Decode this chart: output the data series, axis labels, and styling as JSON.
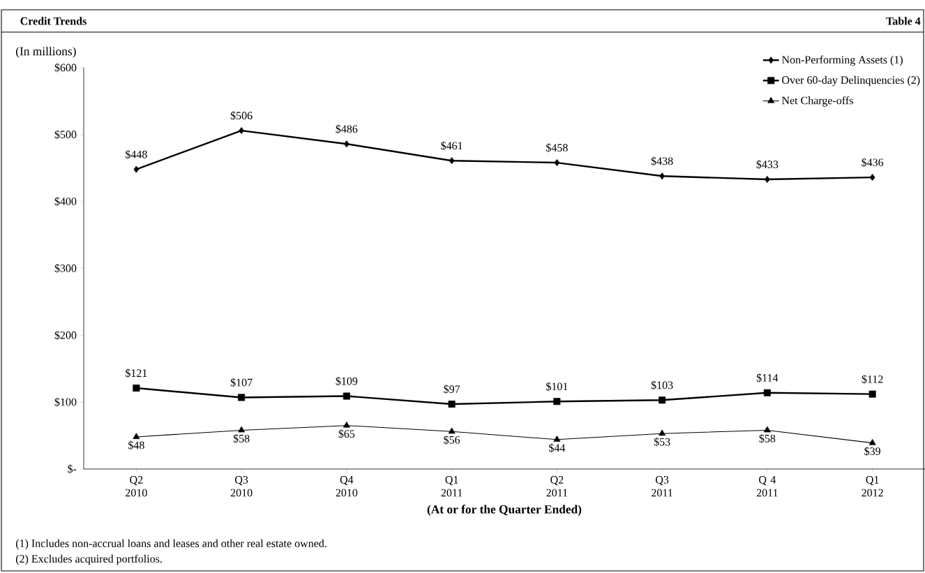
{
  "chart_data": {
    "type": "line",
    "title": "Credit Trends",
    "ylabel": "(In millions)",
    "xlabel": "(At or for the Quarter Ended)",
    "categories": [
      "Q2 2010",
      "Q3 2010",
      "Q4 2010",
      "Q1 2011",
      "Q2 2011",
      "Q3 2011",
      "Q 4 2011",
      "Q1 2012"
    ],
    "series": [
      {
        "name": "Non-Performing Assets (1)",
        "color": "#000000",
        "marker": "diamond",
        "values": [
          448,
          506,
          486,
          461,
          458,
          438,
          433,
          436
        ],
        "value_labels": [
          "$448",
          "$506",
          "$486",
          "$461",
          "$458",
          "$438",
          "$433",
          "$436"
        ]
      },
      {
        "name": "Over 60-day Delinquencies  (2)",
        "color": "#000000",
        "marker": "square",
        "values": [
          121,
          107,
          109,
          97,
          101,
          103,
          114,
          112
        ],
        "value_labels": [
          "$121",
          "$107",
          "$109",
          "$97",
          "$101",
          "$103",
          "$114",
          "$112"
        ]
      },
      {
        "name": "Net Charge-offs",
        "color": "#000000",
        "marker": "triangle",
        "values": [
          48,
          58,
          65,
          56,
          44,
          53,
          58,
          39
        ],
        "value_labels": [
          "$48",
          "$58",
          "$65",
          "$56",
          "$44",
          "$53",
          "$58",
          "$39"
        ]
      }
    ],
    "ylim": [
      0,
      600
    ],
    "yticks": [
      {
        "value": 0,
        "label": "$-"
      },
      {
        "value": 100,
        "label": "$100"
      },
      {
        "value": 200,
        "label": "$200"
      },
      {
        "value": 300,
        "label": "$300"
      },
      {
        "value": 400,
        "label": "$400"
      },
      {
        "value": 500,
        "label": "$500"
      },
      {
        "value": 600,
        "label": "$600"
      }
    ],
    "legend": "top right",
    "grid": false,
    "line_style": "solid",
    "annotations": [
      "Table 4",
      "(1) Includes non-accrual loans and leases and other real estate owned.",
      "(2) Excludes acquired portfolios."
    ]
  }
}
